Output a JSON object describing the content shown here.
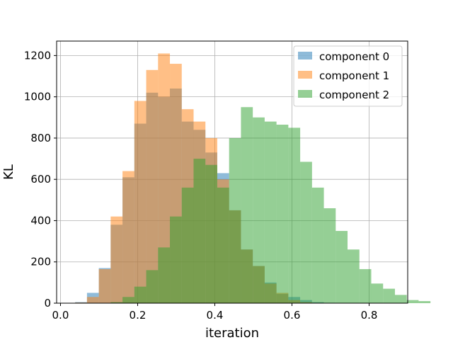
{
  "chart_data": {
    "type": "histogram",
    "title": "",
    "xlabel": "iteration",
    "ylabel": "KL",
    "xlim": [
      -0.01,
      0.9
    ],
    "ylim": [
      0,
      1270
    ],
    "xticks": [
      0.0,
      0.2,
      0.4,
      0.6,
      0.8
    ],
    "xtick_labels": [
      "0.0",
      "0.2",
      "0.4",
      "0.6",
      "0.8"
    ],
    "yticks": [
      0,
      200,
      400,
      600,
      800,
      1000,
      1200
    ],
    "ytick_labels": [
      "0",
      "200",
      "400",
      "600",
      "800",
      "1000",
      "1200"
    ],
    "grid": true,
    "legend_position": "top-right",
    "series": [
      {
        "name": "component 0",
        "color": "#1f77b4",
        "opacity": 0.5,
        "bin_start": 0.038,
        "bin_width": 0.0307,
        "counts": [
          5,
          50,
          170,
          380,
          610,
          870,
          1020,
          1000,
          1040,
          880,
          840,
          730,
          630,
          450,
          260,
          180,
          100,
          45,
          30,
          15,
          5,
          2,
          1,
          0,
          0,
          0,
          0,
          0,
          0,
          0
        ]
      },
      {
        "name": "component 1",
        "color": "#ff7f0e",
        "opacity": 0.5,
        "bin_start": 0.038,
        "bin_width": 0.0307,
        "counts": [
          3,
          30,
          165,
          420,
          640,
          980,
          1130,
          1210,
          1160,
          940,
          880,
          800,
          600,
          450,
          260,
          180,
          95,
          50,
          15,
          5,
          2,
          1,
          0,
          0,
          0,
          0,
          0,
          0,
          0,
          0
        ]
      },
      {
        "name": "component 2",
        "color": "#2ca02c",
        "opacity": 0.5,
        "bin_start": 0.038,
        "bin_width": 0.0307,
        "counts": [
          0,
          0,
          0,
          5,
          30,
          80,
          160,
          270,
          420,
          560,
          700,
          670,
          560,
          800,
          950,
          900,
          880,
          865,
          850,
          685,
          560,
          460,
          350,
          260,
          165,
          95,
          70,
          40,
          15,
          10
        ]
      }
    ]
  }
}
